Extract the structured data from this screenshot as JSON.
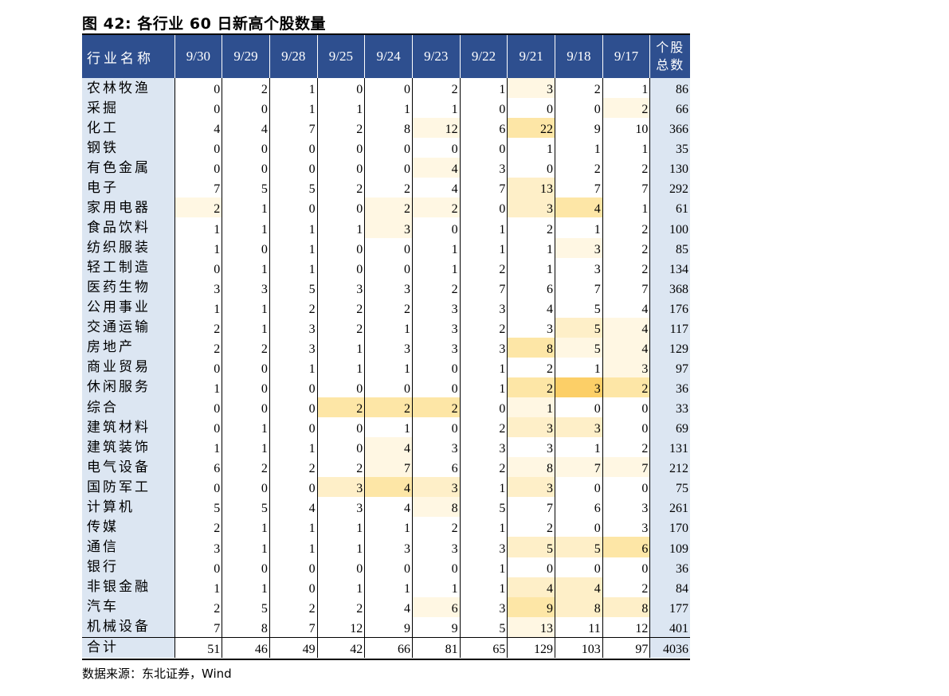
{
  "title": "图 42:  各行业 60 日新高个股数量",
  "source": "数据来源：东北证券，Wind",
  "table": {
    "name_header": "行业名称",
    "dates": [
      "9/30",
      "9/29",
      "9/28",
      "9/25",
      "9/24",
      "9/23",
      "9/22",
      "9/21",
      "9/18",
      "9/17"
    ],
    "total_header_line1": "个股",
    "total_header_line2": "总数",
    "rows": [
      {
        "name": "农林牧渔",
        "values": [
          0,
          2,
          1,
          0,
          0,
          2,
          1,
          3,
          2,
          1
        ],
        "total": 86
      },
      {
        "name": "采掘",
        "values": [
          0,
          0,
          1,
          1,
          1,
          1,
          0,
          0,
          0,
          2
        ],
        "total": 66
      },
      {
        "name": "化工",
        "values": [
          4,
          4,
          7,
          2,
          8,
          12,
          6,
          22,
          9,
          10
        ],
        "total": 366
      },
      {
        "name": "钢铁",
        "values": [
          0,
          0,
          0,
          0,
          0,
          0,
          0,
          1,
          1,
          1
        ],
        "total": 35
      },
      {
        "name": "有色金属",
        "values": [
          0,
          0,
          0,
          0,
          0,
          4,
          3,
          0,
          2,
          2
        ],
        "total": 130
      },
      {
        "name": "电子",
        "values": [
          7,
          5,
          5,
          2,
          2,
          4,
          7,
          13,
          7,
          7
        ],
        "total": 292
      },
      {
        "name": "家用电器",
        "values": [
          2,
          1,
          0,
          0,
          2,
          2,
          0,
          3,
          4,
          1
        ],
        "total": 61
      },
      {
        "name": "食品饮料",
        "values": [
          1,
          1,
          1,
          1,
          3,
          0,
          1,
          2,
          1,
          2
        ],
        "total": 100
      },
      {
        "name": "纺织服装",
        "values": [
          1,
          0,
          1,
          0,
          0,
          1,
          1,
          1,
          3,
          2
        ],
        "total": 85
      },
      {
        "name": "轻工制造",
        "values": [
          0,
          1,
          1,
          0,
          0,
          1,
          2,
          1,
          3,
          2
        ],
        "total": 134
      },
      {
        "name": "医药生物",
        "values": [
          3,
          3,
          5,
          3,
          3,
          2,
          7,
          6,
          7,
          7
        ],
        "total": 368
      },
      {
        "name": "公用事业",
        "values": [
          1,
          1,
          2,
          2,
          2,
          3,
          3,
          4,
          5,
          4
        ],
        "total": 176
      },
      {
        "name": "交通运输",
        "values": [
          2,
          1,
          3,
          2,
          1,
          3,
          2,
          3,
          5,
          4
        ],
        "total": 117
      },
      {
        "name": "房地产",
        "values": [
          2,
          2,
          3,
          1,
          3,
          3,
          3,
          8,
          5,
          4
        ],
        "total": 129
      },
      {
        "name": "商业贸易",
        "values": [
          0,
          0,
          1,
          1,
          1,
          0,
          1,
          2,
          1,
          3
        ],
        "total": 97
      },
      {
        "name": "休闲服务",
        "values": [
          1,
          0,
          0,
          0,
          0,
          0,
          1,
          2,
          3,
          2
        ],
        "total": 36
      },
      {
        "name": "综合",
        "values": [
          0,
          0,
          0,
          2,
          2,
          2,
          0,
          1,
          0,
          0
        ],
        "total": 33
      },
      {
        "name": "建筑材料",
        "values": [
          0,
          1,
          0,
          0,
          1,
          0,
          2,
          3,
          3,
          0
        ],
        "total": 69
      },
      {
        "name": "建筑装饰",
        "values": [
          1,
          1,
          1,
          0,
          4,
          3,
          3,
          3,
          1,
          2
        ],
        "total": 131
      },
      {
        "name": "电气设备",
        "values": [
          6,
          2,
          2,
          2,
          7,
          6,
          2,
          8,
          7,
          7
        ],
        "total": 212
      },
      {
        "name": "国防军工",
        "values": [
          0,
          0,
          0,
          3,
          4,
          3,
          1,
          3,
          0,
          0
        ],
        "total": 75
      },
      {
        "name": "计算机",
        "values": [
          5,
          5,
          4,
          3,
          4,
          8,
          5,
          7,
          6,
          3
        ],
        "total": 261
      },
      {
        "name": "传媒",
        "values": [
          2,
          1,
          1,
          1,
          1,
          2,
          1,
          2,
          0,
          3
        ],
        "total": 170
      },
      {
        "name": "通信",
        "values": [
          3,
          1,
          1,
          1,
          3,
          3,
          3,
          5,
          5,
          6
        ],
        "total": 109
      },
      {
        "name": "银行",
        "values": [
          0,
          0,
          0,
          0,
          0,
          0,
          1,
          0,
          0,
          0
        ],
        "total": 36
      },
      {
        "name": "非银金融",
        "values": [
          1,
          1,
          0,
          1,
          1,
          1,
          1,
          4,
          4,
          2
        ],
        "total": 84
      },
      {
        "name": "汽车",
        "values": [
          2,
          5,
          2,
          2,
          4,
          6,
          3,
          9,
          8,
          8
        ],
        "total": 177
      },
      {
        "name": "机械设备",
        "values": [
          7,
          8,
          7,
          12,
          9,
          9,
          5,
          13,
          11,
          12
        ],
        "total": 401
      },
      {
        "name": "合计",
        "values": [
          51,
          46,
          49,
          42,
          66,
          81,
          65,
          129,
          103,
          97
        ],
        "total": 4036
      }
    ]
  }
}
